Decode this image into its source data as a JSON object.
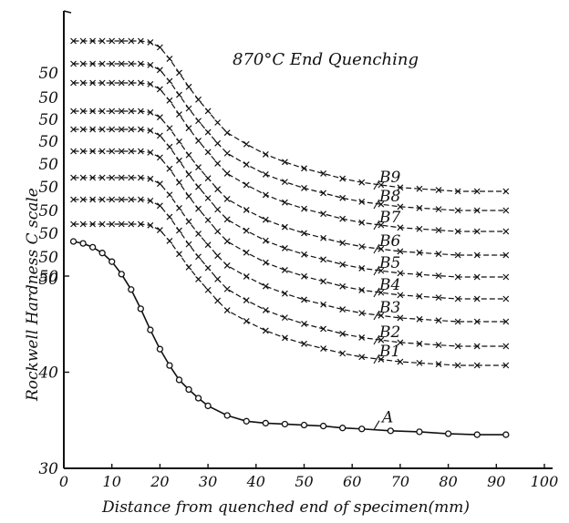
{
  "chart_data": {
    "type": "line",
    "title": "870°C End Quenching",
    "xlabel": "Distance from quenched end of specimen(mm)",
    "ylabel": "Rockwell Hardness C scale",
    "xlim": [
      0,
      100
    ],
    "ylim": [
      30,
      68
    ],
    "x_ticks": [
      0,
      10,
      20,
      30,
      40,
      50,
      60,
      70,
      80,
      90,
      100
    ],
    "y_ticks": [
      30,
      40,
      50
    ],
    "offset_label_text": "50",
    "grid": false,
    "legend": "none (curves labelled directly at right)",
    "series": [
      {
        "name": "A",
        "marker": "o",
        "line": "solid",
        "x": [
          2,
          4,
          6,
          8,
          10,
          12,
          14,
          16,
          18,
          20,
          22,
          24,
          26,
          28,
          30,
          34,
          38,
          42,
          46,
          50,
          54,
          58,
          62,
          68,
          74,
          80,
          86,
          92
        ],
        "y": [
          53.6,
          53.4,
          53.0,
          52.4,
          51.5,
          50.2,
          48.6,
          46.6,
          44.4,
          42.4,
          40.7,
          39.2,
          38.2,
          37.3,
          36.5,
          35.5,
          34.9,
          34.7,
          34.6,
          34.5,
          34.4,
          34.2,
          34.1,
          33.9,
          33.8,
          33.6,
          33.5,
          33.5
        ]
      },
      {
        "name": "B1",
        "marker": "x",
        "line": "dashed"
      },
      {
        "name": "B2",
        "marker": "x",
        "line": "dashed"
      },
      {
        "name": "B3",
        "marker": "x",
        "line": "dashed"
      },
      {
        "name": "B4",
        "marker": "x",
        "line": "dashed"
      },
      {
        "name": "B5",
        "marker": "x",
        "line": "dashed"
      },
      {
        "name": "B6",
        "marker": "x",
        "line": "dashed"
      },
      {
        "name": "B7",
        "marker": "x",
        "line": "dashed"
      },
      {
        "name": "B8",
        "marker": "x",
        "line": "dashed"
      },
      {
        "name": "B9",
        "marker": "x",
        "line": "dashed"
      }
    ]
  }
}
